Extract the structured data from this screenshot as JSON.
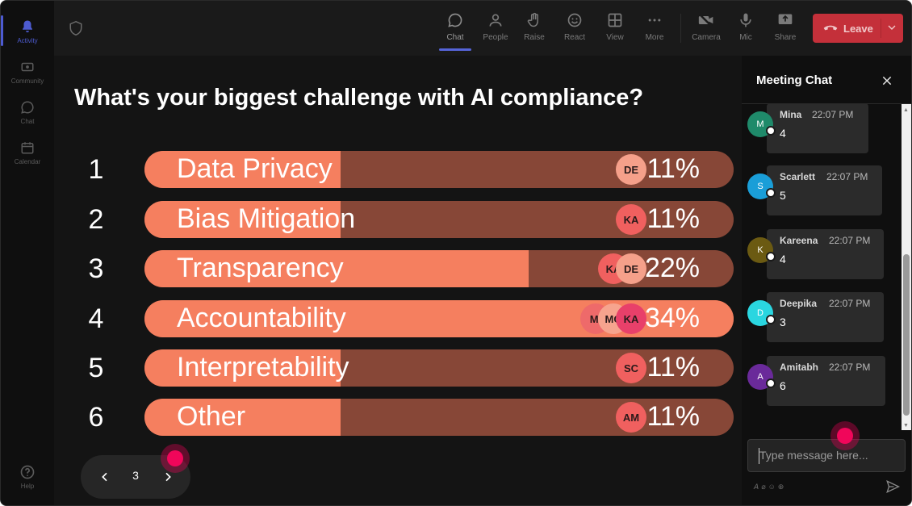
{
  "rail": {
    "items": [
      {
        "label": "Activity",
        "icon": "bell-icon"
      },
      {
        "label": "Community",
        "icon": "community-icon"
      },
      {
        "label": "Chat",
        "icon": "chat-icon"
      },
      {
        "label": "Calendar",
        "icon": "calendar-icon"
      }
    ],
    "help": {
      "label": "Help",
      "icon": "help-icon"
    }
  },
  "toolbar": {
    "tools": [
      {
        "label": "Chat",
        "icon": "chat-icon",
        "active": true
      },
      {
        "label": "People",
        "icon": "people-icon"
      },
      {
        "label": "Raise",
        "icon": "raise-hand-icon"
      },
      {
        "label": "React",
        "icon": "smiley-icon"
      },
      {
        "label": "View",
        "icon": "grid-icon"
      },
      {
        "label": "More",
        "icon": "more-icon"
      },
      {
        "label": "Camera",
        "icon": "camera-off-icon"
      },
      {
        "label": "Mic",
        "icon": "mic-icon"
      },
      {
        "label": "Share",
        "icon": "share-icon"
      }
    ],
    "leave_label": "Leave"
  },
  "poll": {
    "question": "What's your biggest challenge with AI compliance?",
    "options": [
      {
        "number": "1",
        "label": "Data Privacy",
        "percent": "11%",
        "share": 11,
        "voters": [
          "DE"
        ]
      },
      {
        "number": "2",
        "label": "Bias Mitigation",
        "percent": "11%",
        "share": 11,
        "voters": [
          "KA"
        ]
      },
      {
        "number": "3",
        "label": "Transparency",
        "percent": "22%",
        "share": 22,
        "voters": [
          "KA",
          "DE"
        ]
      },
      {
        "number": "4",
        "label": "Accountability",
        "percent": "34%",
        "share": 34,
        "voters": [
          "MI",
          "MO",
          "KA"
        ]
      },
      {
        "number": "5",
        "label": "Interpretability",
        "percent": "11%",
        "share": 11,
        "voters": [
          "SC"
        ]
      },
      {
        "number": "6",
        "label": "Other",
        "percent": "11%",
        "share": 11,
        "voters": [
          "AM"
        ]
      }
    ],
    "voter_colors": {
      "DE": "#f5a08a",
      "KA": "#f0605f",
      "MI": "#ee6a6a",
      "MO": "#f6a48e",
      "SC": "#f0605f",
      "AM": "#f0605f",
      "KA-accent": "#e8406a"
    },
    "page": "3"
  },
  "chat": {
    "title": "Meeting Chat",
    "messages": [
      {
        "initial": "M",
        "name": "Mina",
        "time": "22:07 PM",
        "text": "4",
        "color": "#1f8a6a"
      },
      {
        "initial": "S",
        "name": "Scarlett",
        "time": "22:07 PM",
        "text": "5",
        "color": "#1a9ed8"
      },
      {
        "initial": "K",
        "name": "Kareena",
        "time": "22:07 PM",
        "text": "4",
        "color": "#6b5a12"
      },
      {
        "initial": "D",
        "name": "Deepika",
        "time": "22:07 PM",
        "text": "3",
        "color": "#2ad6e0"
      },
      {
        "initial": "A",
        "name": "Amitabh",
        "time": "22:07 PM",
        "text": "6",
        "color": "#6a2a9a"
      }
    ],
    "placeholder": "Type message here..."
  },
  "colors": {
    "accent": "#5564d8",
    "leave": "#c4303a",
    "bar_fill": "#f57f5f",
    "bar_track": "#874737",
    "cursor": "#f0065a"
  }
}
